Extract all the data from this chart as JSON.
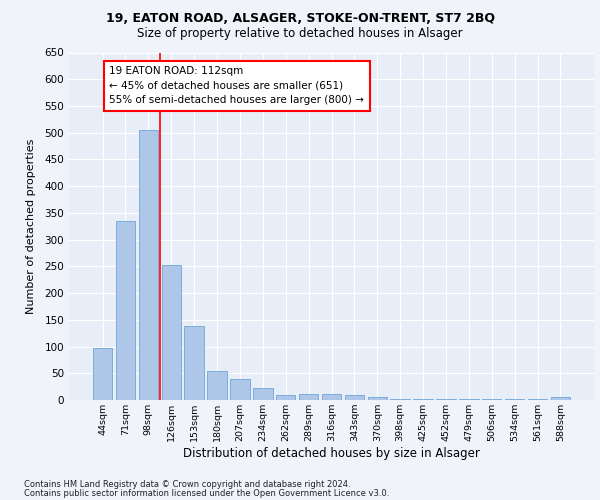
{
  "title1": "19, EATON ROAD, ALSAGER, STOKE-ON-TRENT, ST7 2BQ",
  "title2": "Size of property relative to detached houses in Alsager",
  "xlabel": "Distribution of detached houses by size in Alsager",
  "ylabel": "Number of detached properties",
  "categories": [
    "44sqm",
    "71sqm",
    "98sqm",
    "126sqm",
    "153sqm",
    "180sqm",
    "207sqm",
    "234sqm",
    "262sqm",
    "289sqm",
    "316sqm",
    "343sqm",
    "370sqm",
    "398sqm",
    "425sqm",
    "452sqm",
    "479sqm",
    "506sqm",
    "534sqm",
    "561sqm",
    "588sqm"
  ],
  "values": [
    97,
    335,
    505,
    252,
    138,
    54,
    40,
    23,
    10,
    12,
    12,
    10,
    5,
    2,
    2,
    2,
    1,
    1,
    1,
    1,
    5
  ],
  "bar_color": "#aec6e8",
  "bar_edgecolor": "#5b9bd5",
  "annotation_text_line1": "19 EATON ROAD: 112sqm",
  "annotation_text_line2": "← 45% of detached houses are smaller (651)",
  "annotation_text_line3": "55% of semi-detached houses are larger (800) →",
  "ylim": [
    0,
    650
  ],
  "yticks": [
    0,
    50,
    100,
    150,
    200,
    250,
    300,
    350,
    400,
    450,
    500,
    550,
    600,
    650
  ],
  "footer1": "Contains HM Land Registry data © Crown copyright and database right 2024.",
  "footer2": "Contains public sector information licensed under the Open Government Licence v3.0.",
  "bg_color": "#f0f4fa",
  "plot_bg_color": "#e8eef8"
}
